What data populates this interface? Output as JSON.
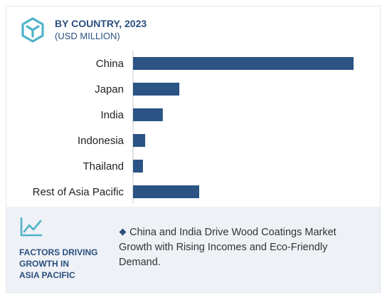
{
  "header": {
    "title": "BY COUNTRY, 2023",
    "subtitle": "(USD MILLION)"
  },
  "chart_data": {
    "type": "bar",
    "orientation": "horizontal",
    "title": "BY COUNTRY, 2023",
    "subtitle": "(USD MILLION)",
    "categories": [
      "China",
      "Japan",
      "India",
      "Indonesia",
      "Thailand",
      "Rest of Asia Pacific"
    ],
    "values": [
      100,
      21,
      13.5,
      5.5,
      4.5,
      30
    ],
    "xlim": [
      0,
      100
    ],
    "grid": false,
    "bar_color": "#2b5384"
  },
  "footer": {
    "factors_lines": [
      "FACTORS DRIVING",
      "GROWTH IN",
      "ASIA PACIFIC"
    ],
    "bullet_lines": [
      "China and India Drive Wood Coatings Market",
      "Growth with Rising Incomes and Eco-Friendly",
      "Demand."
    ],
    "accent_color": "#2a4f7e",
    "background_color": "#eef1f6"
  },
  "icons": {
    "logo": "hexagon-cube-icon",
    "trend": "line-trend-icon"
  }
}
